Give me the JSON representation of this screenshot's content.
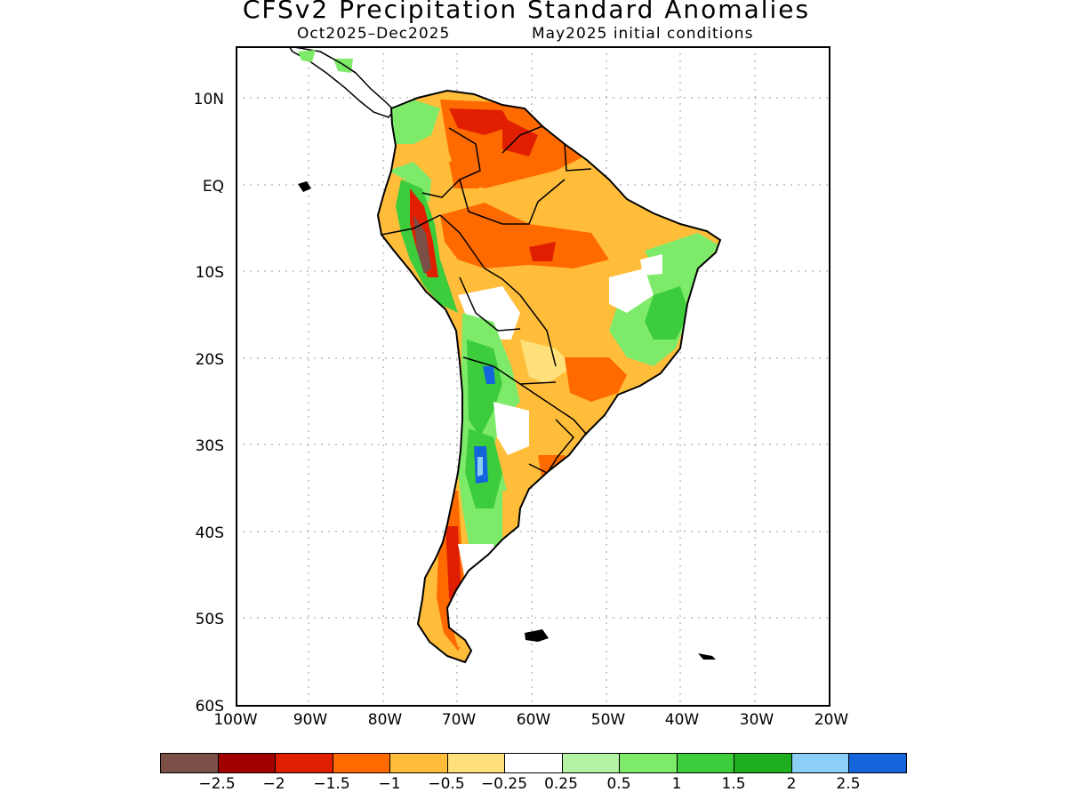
{
  "title": "CFSv2 Precipitation Standard Anomalies",
  "subtitle_left": "Oct2025–Dec2025",
  "subtitle_right": "May2025 initial conditions",
  "lat_labels": [
    "10N",
    "EQ",
    "10S",
    "20S",
    "30S",
    "40S",
    "50S",
    "60S"
  ],
  "lon_labels": [
    "100W",
    "90W",
    "80W",
    "70W",
    "60W",
    "50W",
    "40W",
    "30W",
    "20W"
  ],
  "colorbar": {
    "colors": [
      "#7a4f46",
      "#a10000",
      "#e01f00",
      "#ff6a00",
      "#ffbd3a",
      "#ffe07a",
      "#ffffff",
      "#b4f2a4",
      "#7eea6a",
      "#3ccc3c",
      "#1fae1f",
      "#8ccff6",
      "#1465dc"
    ],
    "labels": [
      "−2.5",
      "−2",
      "−1.5",
      "−1",
      "−0.5",
      "−0.25",
      "0.25",
      "0.5",
      "1",
      "1.5",
      "2",
      "2.5"
    ]
  }
}
